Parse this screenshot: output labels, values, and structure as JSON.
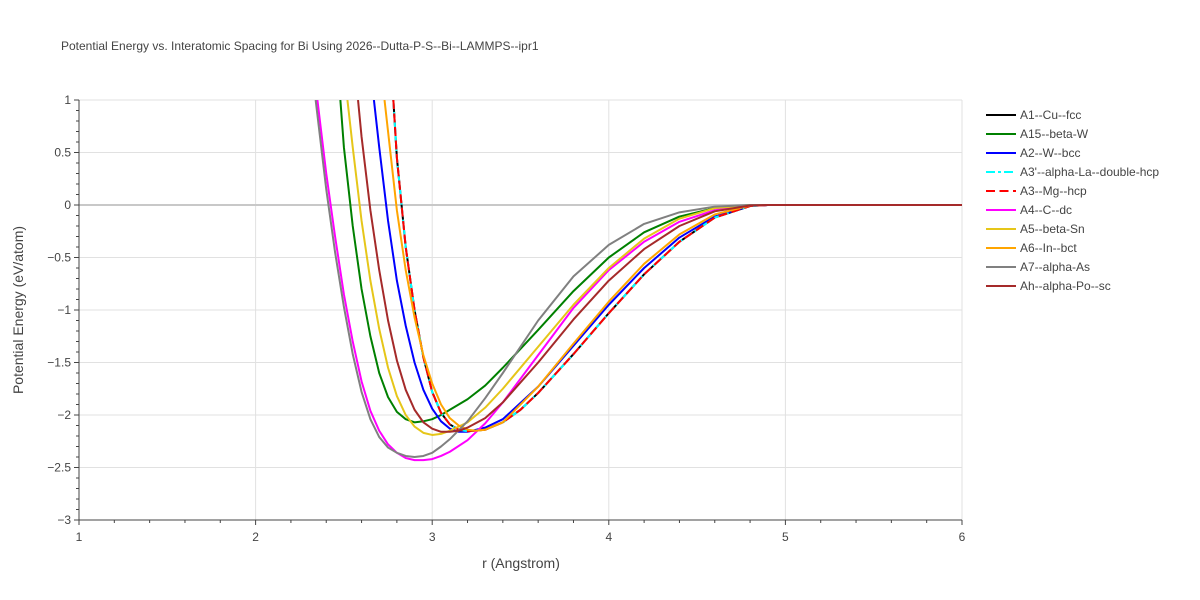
{
  "chart_data": {
    "type": "line",
    "title": "Potential Energy vs. Interatomic Spacing for Bi Using 2026--Dutta-P-S--Bi--LAMMPS--ipr1",
    "xlabel": "r (Angstrom)",
    "ylabel": "Potential Energy (eV/atom)",
    "xlim": [
      1,
      6
    ],
    "ylim": [
      -3,
      1
    ],
    "xticks": [
      1,
      2,
      3,
      4,
      5,
      6
    ],
    "xtick_labels": [
      "1",
      "2",
      "3",
      "4",
      "5",
      "6"
    ],
    "yticks": [
      1,
      0.5,
      0,
      -0.5,
      -1,
      -1.5,
      -2,
      -2.5,
      -3
    ],
    "ytick_labels": [
      "1",
      "0.5",
      "0",
      "−0.5",
      "−1",
      "−1.5",
      "−2",
      "−2.5",
      "−3"
    ],
    "grid": true,
    "legend_position": "right",
    "series": [
      {
        "name": "A1--Cu--fcc",
        "color": "#000000",
        "dash": "solid",
        "x": [
          2.78,
          2.8,
          2.85,
          2.9,
          2.95,
          3.0,
          3.05,
          3.1,
          3.15,
          3.2,
          3.3,
          3.4,
          3.5,
          3.6,
          3.8,
          4.0,
          4.2,
          4.4,
          4.6,
          4.8,
          4.9,
          5.0,
          6.0
        ],
        "y": [
          1.0,
          0.45,
          -0.4,
          -1.0,
          -1.45,
          -1.78,
          -1.98,
          -2.09,
          -2.14,
          -2.155,
          -2.14,
          -2.07,
          -1.95,
          -1.79,
          -1.42,
          -1.03,
          -0.66,
          -0.35,
          -0.12,
          -0.01,
          0.0,
          0.0,
          0.0
        ]
      },
      {
        "name": "A15--beta-W",
        "color": "#008000",
        "dash": "solid",
        "x": [
          2.48,
          2.5,
          2.55,
          2.6,
          2.65,
          2.7,
          2.75,
          2.8,
          2.85,
          2.9,
          2.95,
          3.0,
          3.05,
          3.1,
          3.2,
          3.3,
          3.4,
          3.6,
          3.8,
          4.0,
          4.2,
          4.4,
          4.6,
          4.8,
          4.9,
          6.0
        ],
        "y": [
          1.0,
          0.55,
          -0.2,
          -0.8,
          -1.25,
          -1.6,
          -1.83,
          -1.97,
          -2.04,
          -2.07,
          -2.06,
          -2.04,
          -2.0,
          -1.95,
          -1.85,
          -1.72,
          -1.55,
          -1.19,
          -0.82,
          -0.5,
          -0.26,
          -0.11,
          -0.03,
          0.0,
          0.0,
          0.0
        ]
      },
      {
        "name": "A2--W--bcc",
        "color": "#0000ff",
        "dash": "solid",
        "x": [
          2.67,
          2.7,
          2.75,
          2.8,
          2.85,
          2.9,
          2.95,
          3.0,
          3.05,
          3.1,
          3.15,
          3.2,
          3.3,
          3.4,
          3.6,
          3.8,
          4.0,
          4.2,
          4.4,
          4.6,
          4.8,
          4.9,
          6.0
        ],
        "y": [
          1.0,
          0.55,
          -0.15,
          -0.72,
          -1.15,
          -1.5,
          -1.76,
          -1.94,
          -2.06,
          -2.13,
          -2.16,
          -2.16,
          -2.12,
          -2.04,
          -1.73,
          -1.34,
          -0.95,
          -0.6,
          -0.31,
          -0.11,
          -0.01,
          0.0,
          0.0
        ]
      },
      {
        "name": "A3'--alpha-La--double-hcp",
        "color": "#00ffff",
        "dash": "dashdot",
        "x": [
          2.78,
          2.8,
          2.85,
          2.9,
          2.95,
          3.0,
          3.05,
          3.1,
          3.15,
          3.2,
          3.3,
          3.4,
          3.5,
          3.6,
          3.8,
          4.0,
          4.2,
          4.4,
          4.6,
          4.8,
          4.9,
          5.0,
          6.0
        ],
        "y": [
          1.0,
          0.45,
          -0.4,
          -1.0,
          -1.45,
          -1.78,
          -1.98,
          -2.09,
          -2.14,
          -2.155,
          -2.14,
          -2.07,
          -1.95,
          -1.79,
          -1.42,
          -1.03,
          -0.66,
          -0.35,
          -0.12,
          -0.01,
          0.0,
          0.0,
          0.0
        ]
      },
      {
        "name": "A3--Mg--hcp",
        "color": "#ff0000",
        "dash": "dash",
        "x": [
          2.78,
          2.8,
          2.85,
          2.9,
          2.95,
          3.0,
          3.05,
          3.1,
          3.15,
          3.2,
          3.3,
          3.4,
          3.5,
          3.6,
          3.8,
          4.0,
          4.2,
          4.4,
          4.6,
          4.8,
          4.9,
          5.0,
          6.0
        ],
        "y": [
          1.0,
          0.45,
          -0.4,
          -1.0,
          -1.45,
          -1.78,
          -1.98,
          -2.09,
          -2.14,
          -2.155,
          -2.14,
          -2.07,
          -1.95,
          -1.79,
          -1.42,
          -1.03,
          -0.66,
          -0.35,
          -0.12,
          -0.01,
          0.0,
          0.0,
          0.0
        ]
      },
      {
        "name": "A4--C--dc",
        "color": "#ff00ff",
        "dash": "solid",
        "x": [
          2.35,
          2.4,
          2.45,
          2.5,
          2.55,
          2.6,
          2.65,
          2.7,
          2.75,
          2.8,
          2.85,
          2.9,
          2.95,
          3.0,
          3.05,
          3.1,
          3.2,
          3.3,
          3.4,
          3.6,
          3.8,
          4.0,
          4.2,
          4.4,
          4.6,
          4.8,
          4.9,
          6.0
        ],
        "y": [
          1.0,
          0.3,
          -0.3,
          -0.85,
          -1.3,
          -1.68,
          -1.96,
          -2.15,
          -2.28,
          -2.36,
          -2.41,
          -2.43,
          -2.43,
          -2.42,
          -2.39,
          -2.35,
          -2.24,
          -2.08,
          -1.88,
          -1.43,
          -0.98,
          -0.62,
          -0.35,
          -0.16,
          -0.05,
          -0.005,
          0.0,
          0.0
        ]
      },
      {
        "name": "A5--beta-Sn",
        "color": "#e6c619",
        "dash": "solid",
        "x": [
          2.52,
          2.55,
          2.6,
          2.65,
          2.7,
          2.75,
          2.8,
          2.85,
          2.9,
          2.95,
          3.0,
          3.05,
          3.1,
          3.2,
          3.3,
          3.4,
          3.6,
          3.8,
          4.0,
          4.2,
          4.4,
          4.6,
          4.8,
          4.9,
          6.0
        ],
        "y": [
          1.0,
          0.55,
          -0.15,
          -0.72,
          -1.18,
          -1.55,
          -1.82,
          -2.0,
          -2.11,
          -2.17,
          -2.19,
          -2.18,
          -2.15,
          -2.07,
          -1.93,
          -1.75,
          -1.35,
          -0.95,
          -0.6,
          -0.32,
          -0.13,
          -0.03,
          0.0,
          0.0,
          0.0
        ]
      },
      {
        "name": "A6--In--bct",
        "color": "#ffa500",
        "dash": "solid",
        "x": [
          2.73,
          2.75,
          2.8,
          2.85,
          2.9,
          2.95,
          3.0,
          3.05,
          3.1,
          3.15,
          3.2,
          3.25,
          3.3,
          3.4,
          3.6,
          3.8,
          4.0,
          4.2,
          4.4,
          4.6,
          4.8,
          4.9,
          6.0
        ],
        "y": [
          1.0,
          0.7,
          -0.05,
          -0.62,
          -1.07,
          -1.43,
          -1.7,
          -1.9,
          -2.03,
          -2.1,
          -2.14,
          -2.15,
          -2.14,
          -2.07,
          -1.73,
          -1.32,
          -0.92,
          -0.56,
          -0.28,
          -0.09,
          -0.005,
          0.0,
          0.0
        ]
      },
      {
        "name": "A7--alpha-As",
        "color": "#808080",
        "dash": "solid",
        "x": [
          2.34,
          2.4,
          2.45,
          2.5,
          2.55,
          2.6,
          2.65,
          2.7,
          2.75,
          2.8,
          2.85,
          2.9,
          2.95,
          3.0,
          3.05,
          3.1,
          3.2,
          3.3,
          3.4,
          3.6,
          3.8,
          4.0,
          4.2,
          4.4,
          4.6,
          4.8,
          4.9,
          6.0
        ],
        "y": [
          1.0,
          0.15,
          -0.45,
          -0.97,
          -1.42,
          -1.78,
          -2.04,
          -2.21,
          -2.31,
          -2.36,
          -2.39,
          -2.4,
          -2.39,
          -2.36,
          -2.3,
          -2.23,
          -2.06,
          -1.84,
          -1.6,
          -1.1,
          -0.68,
          -0.38,
          -0.18,
          -0.07,
          -0.015,
          0.0,
          0.0,
          0.0
        ]
      },
      {
        "name": "Ah--alpha-Po--sc",
        "color": "#a52a2a",
        "dash": "solid",
        "x": [
          2.58,
          2.6,
          2.65,
          2.7,
          2.75,
          2.8,
          2.85,
          2.9,
          2.95,
          3.0,
          3.05,
          3.1,
          3.15,
          3.2,
          3.3,
          3.4,
          3.6,
          3.8,
          4.0,
          4.2,
          4.4,
          4.6,
          4.8,
          4.9,
          6.0
        ],
        "y": [
          1.0,
          0.65,
          -0.05,
          -0.62,
          -1.1,
          -1.48,
          -1.76,
          -1.95,
          -2.07,
          -2.13,
          -2.16,
          -2.16,
          -2.15,
          -2.12,
          -2.03,
          -1.88,
          -1.5,
          -1.09,
          -0.72,
          -0.42,
          -0.2,
          -0.06,
          -0.005,
          0.0,
          0.0
        ]
      }
    ]
  }
}
